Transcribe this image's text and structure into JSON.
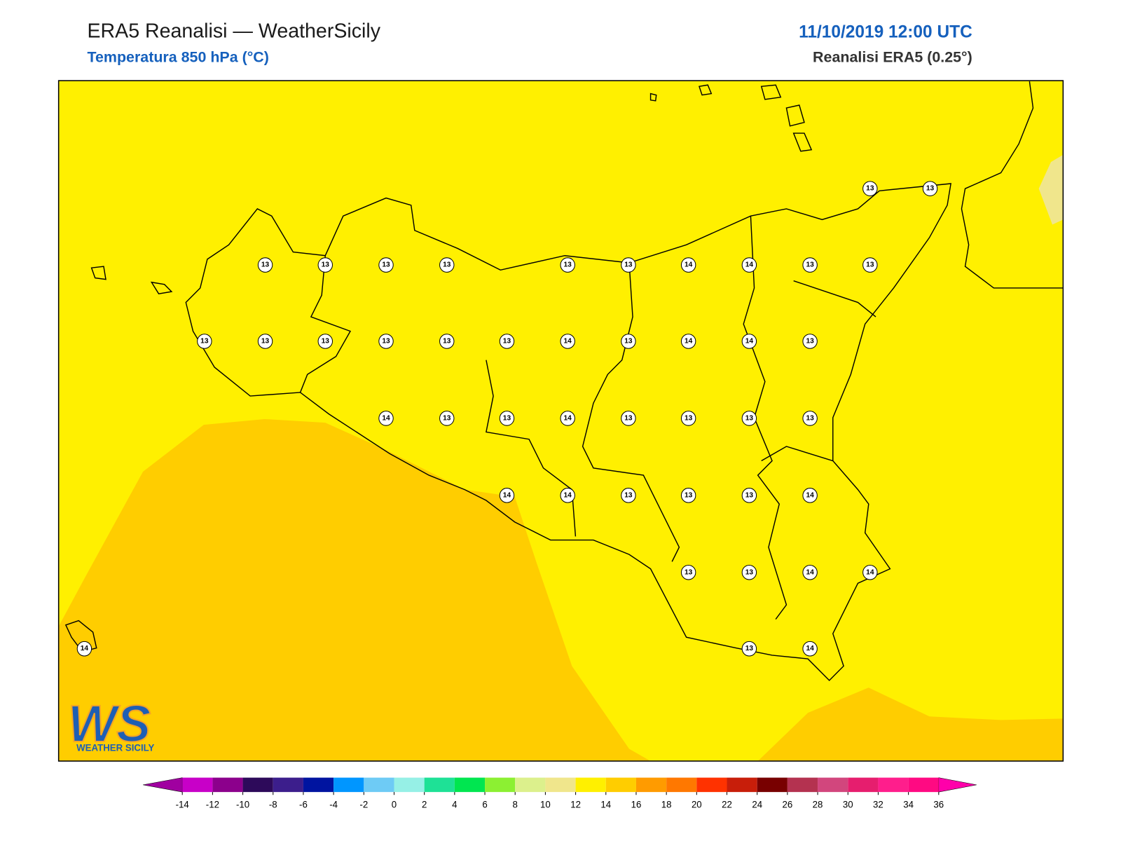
{
  "header": {
    "title": "ERA5 Reanalisi — WeatherSicily",
    "subtitle": "Temperatura 850 hPa (°C)",
    "datetime": "11/10/2019 12:00 UTC",
    "source": "Reanalisi ERA5 (0.25°)"
  },
  "stations": {
    "values": [
      13,
      13,
      13,
      13,
      13,
      13,
      13,
      13,
      14,
      14,
      13,
      13,
      13,
      13,
      13,
      13,
      13,
      13,
      14,
      13,
      14,
      14,
      13,
      14,
      13,
      13,
      14,
      13,
      13,
      13,
      13,
      14,
      14,
      13,
      13,
      13,
      14,
      13,
      13,
      14,
      14,
      14,
      13,
      14
    ]
  },
  "colorbar": {
    "ticks": [
      -14,
      -12,
      -10,
      -8,
      -6,
      -4,
      -2,
      0,
      2,
      4,
      6,
      8,
      10,
      12,
      14,
      16,
      18,
      20,
      22,
      24,
      26,
      28,
      30,
      32,
      34,
      36
    ],
    "colors": [
      "#c800c8",
      "#8c008c",
      "#2d0a5a",
      "#3c1e8c",
      "#0014a0",
      "#0096ff",
      "#6ecbf5",
      "#96f0e6",
      "#1ee196",
      "#00e650",
      "#8cf032",
      "#dcf08c",
      "#f0e68c",
      "#fff000",
      "#ffcd00",
      "#ff9b00",
      "#ff7800",
      "#ff3200",
      "#c81e0a",
      "#780000",
      "#b43250",
      "#d2467d",
      "#e61e6e",
      "#ff1e8c",
      "#ff0a82"
    ],
    "under_color": "#a000a0",
    "over_color": "#ff00aa"
  },
  "logo": {
    "mark": "WS",
    "text": "WEATHER SICILY"
  }
}
